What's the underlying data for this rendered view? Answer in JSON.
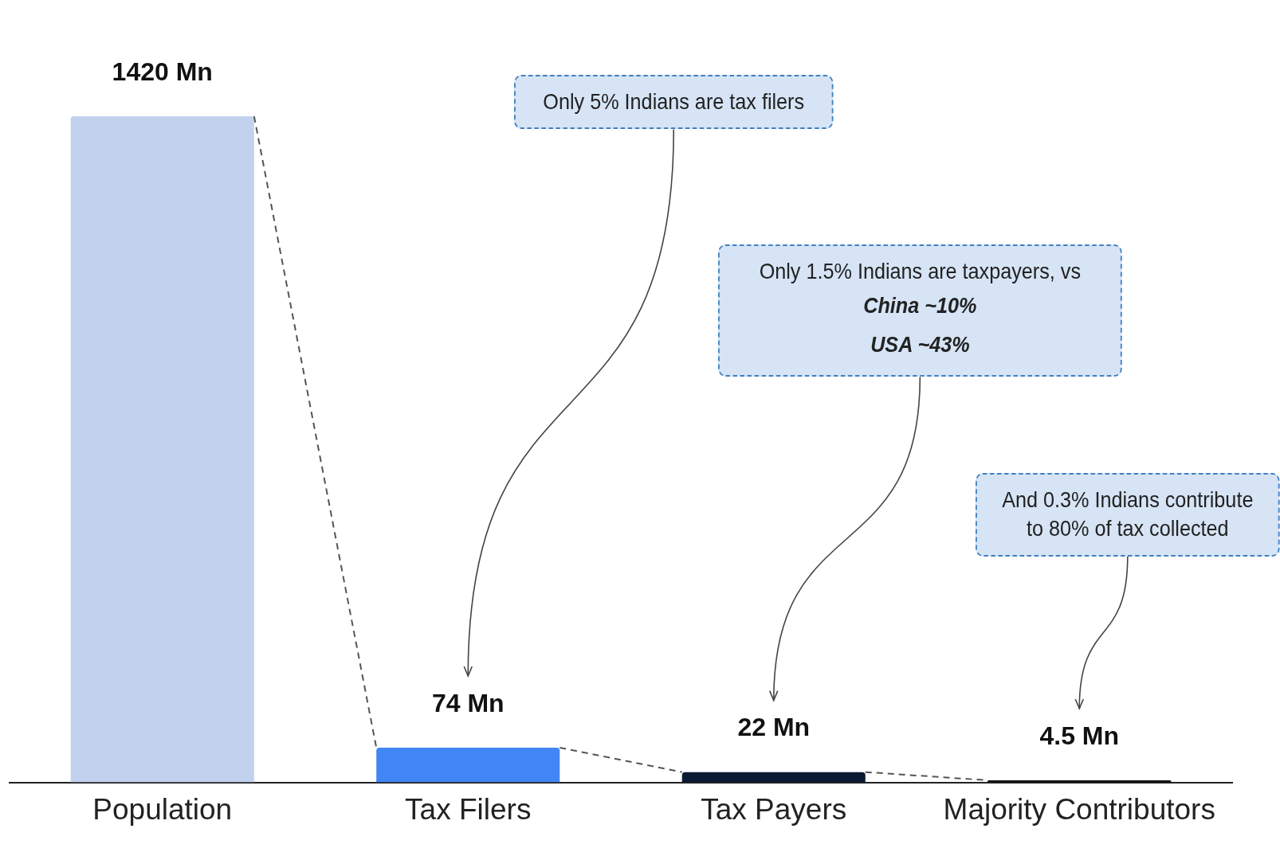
{
  "chart_data": {
    "type": "bar",
    "categories": [
      "Population",
      "Tax Filers",
      "Tax Payers",
      "Majority Contributors"
    ],
    "values": [
      1420,
      74,
      22,
      4.5
    ],
    "colors": [
      "#c2d2ee",
      "#4285f4",
      "#0d1a33",
      "#111111"
    ],
    "value_labels": [
      "1420 Mn",
      "74 Mn",
      "22 Mn",
      "4.5 Mn"
    ],
    "annotations": [
      "Only 5% Indians are tax filers",
      "Only 1.5% Indians  are taxpayers, vs\nChina ~10%\nUSA ~43%",
      "And 0.3% Indians contribute\nto 80% of tax collected"
    ],
    "grid": false,
    "legend": false
  }
}
